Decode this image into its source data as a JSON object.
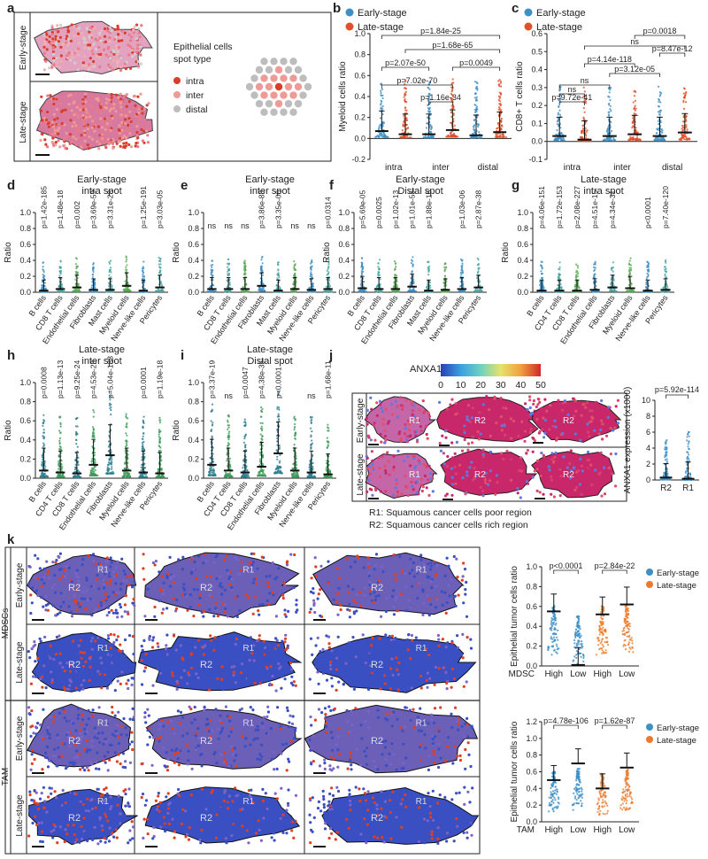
{
  "panel_letters": [
    "a",
    "b",
    "c",
    "d",
    "e",
    "f",
    "g",
    "h",
    "i",
    "j",
    "k"
  ],
  "a": {
    "rows": [
      "Early-stage",
      "Late-stage"
    ],
    "legend_title": [
      "Epithelial cells",
      "spot type"
    ],
    "legend": [
      "intra",
      "inter",
      "distal"
    ],
    "colors": [
      "#d93d2b",
      "#ee9a96",
      "#bdbdbd"
    ]
  },
  "chart_data": [
    {
      "panel": "b",
      "type": "scatter",
      "legend": [
        "Early-stage",
        "Late-stage"
      ],
      "ylabel": "Myeloid cells ratio",
      "ylim": [
        -0.2,
        1.0
      ],
      "yticks": [
        "1.0",
        "0.8",
        "0.6",
        "0.4",
        "0.2",
        "0.0",
        "-0.2"
      ],
      "categories": [
        "intra",
        "inter",
        "distal"
      ],
      "pvals": [
        "p=1.84e-25",
        "p=1.68e-65",
        "p=2.07e-50",
        "p=0.0049",
        "p=7.02e-70",
        "p=1.16e-34"
      ],
      "series": [
        {
          "name": "Early-stage",
          "median": [
            0.07,
            0.04,
            0.03
          ]
        },
        {
          "name": "Late-stage",
          "median": [
            0.04,
            0.08,
            0.06
          ]
        }
      ]
    },
    {
      "panel": "c",
      "type": "scatter",
      "legend": [
        "Early-stage",
        "Late-stage"
      ],
      "ylabel": "CD8+ T cells ratio",
      "ylim": [
        -0.1,
        0.6
      ],
      "yticks": [
        "0.6",
        "0.5",
        "0.4",
        "0.3",
        "0.2",
        "0.1",
        "0.0",
        "-0.1"
      ],
      "categories": [
        "intra",
        "inter",
        "distal"
      ],
      "pvals": [
        "p=0.0018",
        "ns",
        "p=8.47e-12",
        "p=4.14e-118",
        "ns",
        "p=3.12e-05",
        "ns",
        "p=9.72e-41"
      ],
      "series": [
        {
          "name": "Early-stage",
          "median": [
            0.03,
            0.03,
            0.03
          ]
        },
        {
          "name": "Late-stage",
          "median": [
            0.01,
            0.04,
            0.05
          ]
        }
      ]
    },
    {
      "panel": "d",
      "type": "scatter",
      "title": [
        "Early-stage",
        "intra spot"
      ],
      "ylabel": "Ratio",
      "yticks": [
        "1.0",
        "0.8",
        "0.6",
        "0.4",
        "0.2",
        "0.0"
      ],
      "categories": [
        "B cells",
        "CD8 T cells",
        "Endothelial cells",
        "Fibroblasts",
        "Mast cells",
        "Myeloid cells",
        "Nerve-like cells",
        "Pericytes"
      ],
      "pvals": [
        "p=1.42e-185",
        "p=1.48e-18",
        "p=0.002",
        "p=3.69e-59",
        "p=3.31e-28",
        "",
        "p=1.25e-191",
        "p=3.03e-05"
      ],
      "median": [
        0.02,
        0.04,
        0.06,
        0.03,
        0.03,
        0.08,
        0.02,
        0.06
      ]
    },
    {
      "panel": "e",
      "type": "scatter",
      "title": [
        "Early-stage",
        "inter spot"
      ],
      "ylabel": "Ratio",
      "yticks": [
        "1.0",
        "0.8",
        "0.6",
        "0.4",
        "0.2",
        "0.0"
      ],
      "categories": [
        "B cells",
        "CD8 T cells",
        "Endothelial cells",
        "Fibroblasts",
        "Mast cells",
        "Myeloid cells",
        "Nerve-like cells",
        "Pericytes"
      ],
      "pvals": [
        "ns",
        "ns",
        "ns",
        "p=3.86e-88",
        "p=3.35e-06",
        "ns",
        "ns",
        "p=0.0314"
      ],
      "median": [
        0.04,
        0.04,
        0.04,
        0.08,
        0.02,
        0.04,
        0.03,
        0.04
      ]
    },
    {
      "panel": "f",
      "type": "scatter",
      "title": [
        "Early-stage",
        "Distal spot"
      ],
      "ylabel": "Ratio",
      "yticks": [
        "1.0",
        "0.8",
        "0.6",
        "0.4",
        "0.2",
        "0.0"
      ],
      "categories": [
        "B cells",
        "CD8 T cells",
        "Endothelial cells",
        "Fibroblasts",
        "Mast cells",
        "Myeloid cells",
        "Nerve-like cells",
        "Pericytes"
      ],
      "pvals": [
        "p=5.69e-05",
        "p=0.0025",
        "p=1.02e-13",
        "p=1.01e-55",
        "p=1.88e-16",
        "",
        "p=1.03e-06",
        "p=2.87e-38"
      ],
      "median": [
        0.05,
        0.04,
        0.04,
        0.07,
        0.02,
        0.03,
        0.04,
        0.06
      ]
    },
    {
      "panel": "g",
      "type": "scatter",
      "title": [
        "Late-stage",
        "intra spot"
      ],
      "ylabel": "Ratio",
      "yticks": [
        "1.0",
        "0.8",
        "0.6",
        "0.4",
        "0.2",
        "0.0"
      ],
      "categories": [
        "B cells",
        "CD4 T cells",
        "CD8 T cells",
        "Endothelial cells",
        "Fibroblasts",
        "Myeloid cells",
        "Nerve-like cells",
        "Pericytes"
      ],
      "pvals": [
        "p=4.06e-151",
        "p=1.72e-153",
        "p=2.08e-227",
        "p=4.51e-15",
        "p=4.34e-31",
        "",
        "p<0.0001",
        "p=7.40e-120"
      ],
      "median": [
        0.02,
        0.02,
        0.02,
        0.03,
        0.06,
        0.05,
        0.02,
        0.03
      ]
    },
    {
      "panel": "h",
      "type": "scatter",
      "title": [
        "Late-stage",
        "inter spot"
      ],
      "ylabel": "Ratio",
      "yticks": [
        "1.0",
        "0.8",
        "0.6",
        "0.4",
        "0.2",
        "0.0"
      ],
      "categories": [
        "B cells",
        "CD4 T cells",
        "CD8 T cells",
        "Endothelial cells",
        "Fibroblasts",
        "Myeloid cells",
        "Nerve-like cells",
        "Pericytes"
      ],
      "pvals": [
        "p=0.0008",
        "p=1.13e-13",
        "p=9.25e-24",
        "p=4.53e-28",
        "p=5.04e-183",
        "",
        "p=0.0001",
        "p=1.19e-18"
      ],
      "median": [
        0.08,
        0.06,
        0.05,
        0.14,
        0.24,
        0.08,
        0.06,
        0.05
      ]
    },
    {
      "panel": "i",
      "type": "scatter",
      "title": [
        "Late-stage",
        "Distal spot"
      ],
      "ylabel": "Ratio",
      "yticks": [
        "1.0",
        "0.8",
        "0.6",
        "0.4",
        "0.2",
        "0.0"
      ],
      "categories": [
        "B cells",
        "CD4 T cells",
        "CD8 T cells",
        "Endothelial cells",
        "Fibroblasts",
        "Myeloid cells",
        "Nerve-like cells",
        "Pericytes"
      ],
      "pvals": [
        "p=3.37e-19",
        "ns",
        "p=0.0047",
        "p=4.38e-35",
        "p<0.0001",
        "",
        "ns",
        "p=1.68e-11"
      ],
      "median": [
        0.14,
        0.08,
        0.06,
        0.12,
        0.26,
        0.08,
        0.06,
        0.04
      ]
    },
    {
      "panel": "j",
      "type": "scatter",
      "ylabel": "ANXA1 expression (x1000)",
      "yticks": [
        "10",
        "8",
        "6",
        "4",
        "2",
        "0"
      ],
      "categories": [
        "R2",
        "R1"
      ],
      "pvals": [
        "p=5.92e-114"
      ],
      "median": [
        0.3,
        0.15
      ]
    },
    {
      "panel": "k-mdsc",
      "type": "scatter",
      "ylabel": "Epithelial tumor cells ratio",
      "yticks": [
        "1.0",
        "0.8",
        "0.6",
        "0.4",
        "0.2",
        "0.0"
      ],
      "xlabel": "MDSC",
      "categories": [
        "High",
        "Low",
        "High",
        "Low"
      ],
      "legend": [
        "Early-stage",
        "Late-stage"
      ],
      "pvals": [
        "p<0.0001",
        "p=2.84e-22"
      ],
      "median": [
        0.55,
        0.01,
        0.52,
        0.62
      ]
    },
    {
      "panel": "k-tam",
      "type": "scatter",
      "ylabel": "Epithelial tumor cells ratio",
      "yticks": [
        "1.2",
        "1.0",
        "0.8",
        "0.6",
        "0.4",
        "0.2",
        "0.0"
      ],
      "xlabel": "TAM",
      "categories": [
        "High",
        "Low",
        "High",
        "Low"
      ],
      "legend": [
        "Early-stage",
        "Late-stage"
      ],
      "pvals": [
        "p=4.78e-106",
        "p=1.62e-87"
      ],
      "median": [
        0.5,
        0.7,
        0.4,
        0.65
      ]
    }
  ],
  "j": {
    "colorbar_title": "ANXA1",
    "colorbar_ticks": [
      "0",
      "10",
      "20",
      "30",
      "40",
      "50"
    ],
    "rows": [
      "Early-stage",
      "Late-stage"
    ],
    "labels": [
      "R1",
      "R2"
    ],
    "notes": [
      "R1: Squamous cancer cells poor region",
      "R2: Squamous cancer cells rich region"
    ]
  },
  "k": {
    "groups": [
      "MDSCs",
      "TAM"
    ],
    "rows": [
      "Early-stage",
      "Late-stage"
    ],
    "labels": [
      "R1",
      "R2"
    ]
  },
  "colors": {
    "early": "#3d8fc4",
    "late": "#e0502b",
    "k_late": "#ec7a2a",
    "tissue": "#d04a6e",
    "spot_blue": "#3a4fc2",
    "spot_red": "#e04020"
  }
}
